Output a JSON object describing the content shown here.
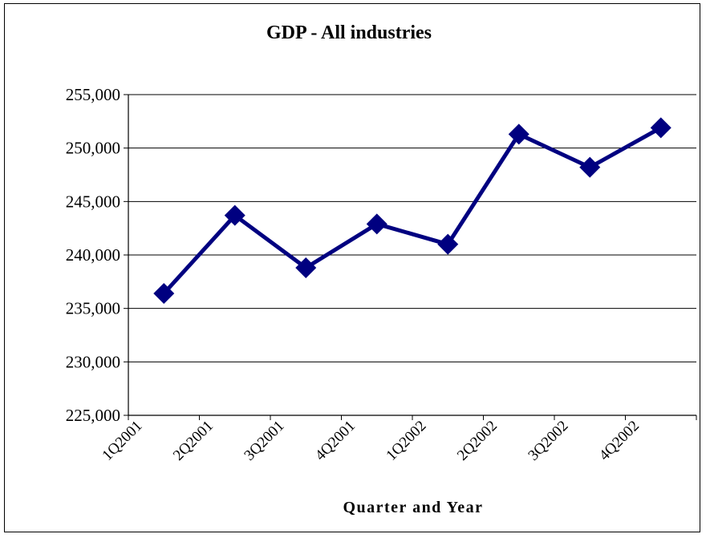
{
  "chart_data": {
    "type": "line",
    "title": "GDP - All industries",
    "xlabel": "Quarter and Year",
    "ylabel": "",
    "categories": [
      "1Q2001",
      "2Q2001",
      "3Q2001",
      "4Q2001",
      "1Q2002",
      "2Q2002",
      "3Q2002",
      "4Q2002"
    ],
    "series": [
      {
        "values": [
          236400,
          243700,
          238800,
          242900,
          241000,
          251300,
          248200,
          251900
        ]
      }
    ],
    "ylim": [
      225000,
      255000
    ],
    "ytick_step": 5000,
    "y_tick_labels": [
      "225,000",
      "230,000",
      "235,000",
      "240,000",
      "245,000",
      "250,000",
      "255,000"
    ],
    "grid": "horizontal",
    "legend": "none",
    "line_color": "#000080",
    "marker": "diamond"
  }
}
